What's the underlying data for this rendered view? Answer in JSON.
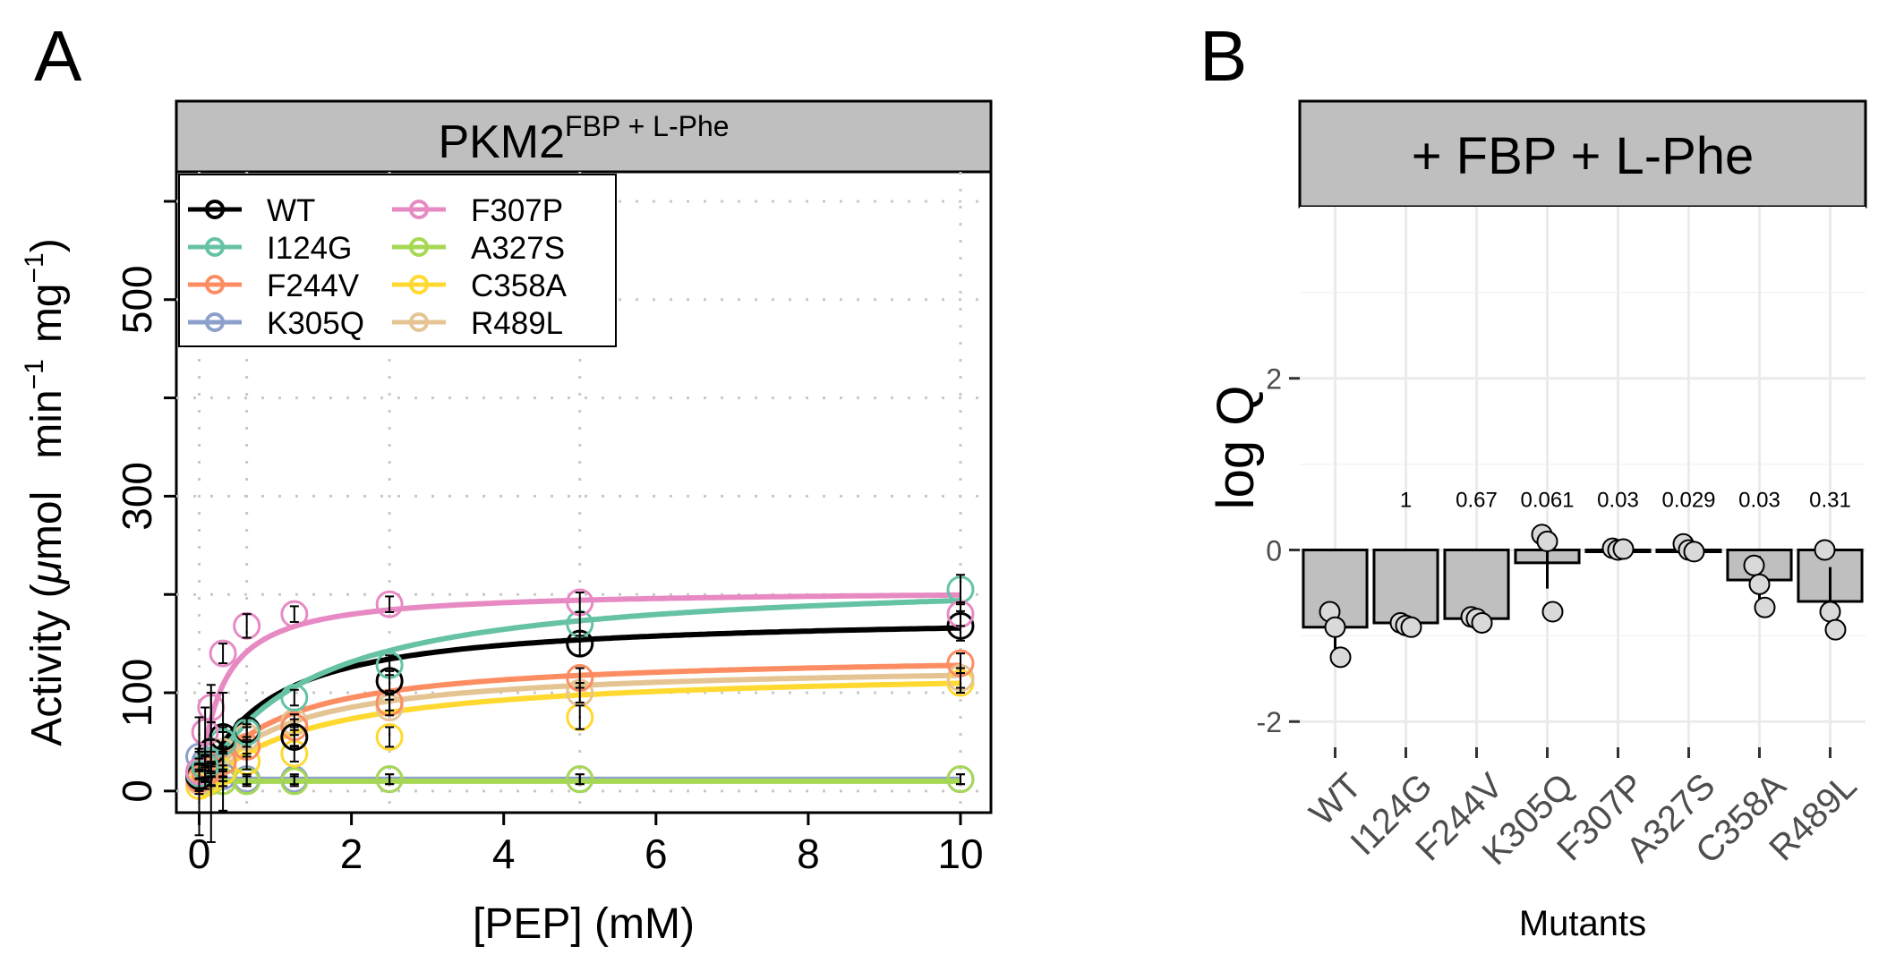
{
  "panel_a": {
    "letter": "A",
    "strip_main": "PKM2",
    "strip_sup": "FBP + L-Phe",
    "xlabel": "[PEP] (mM)",
    "ylabel_prefix": "Activity (",
    "ylabel_mu": "μ",
    "ylabel_mol": "mol",
    "ylabel_min": "min",
    "ylabel_mg": "mg",
    "ylabel_exp": "−1",
    "ylabel_close": ")"
  },
  "panel_b": {
    "letter": "B",
    "strip": "+ FBP + L-Phe",
    "xlabel": "Mutants",
    "ylabel": "log Q"
  },
  "colors": {
    "WT": "#000000",
    "I124G": "#66c2a5",
    "F244V": "#fc8d62",
    "K305Q": "#8da0cb",
    "F307P": "#e78ac3",
    "A327S": "#a6d854",
    "C358A": "#ffd92f",
    "R489L": "#e5c494",
    "strip_fill": "#bfbfbf",
    "bar_fill": "#bfbfbf",
    "grid_a": "#c8c8c8",
    "grid_b": "#ebebeb"
  },
  "chart_data": [
    {
      "type": "line",
      "title": "PKM2 FBP + L-Phe",
      "xlabel": "[PEP] (mM)",
      "ylabel": "Activity (μmol min−1 mg−1)",
      "xlim": [
        -0.3,
        10.4
      ],
      "ylim": [
        -22,
        630
      ],
      "xticks": [
        0,
        2,
        4,
        6,
        8,
        10
      ],
      "yticks": [
        0,
        100,
        300,
        500
      ],
      "grid": true,
      "legend_position": "top-left",
      "x": [
        0.0,
        0.078,
        0.156,
        0.3125,
        0.625,
        1.25,
        2.5,
        5.0,
        10.0
      ],
      "series": [
        {
          "name": "WT",
          "points": [
            15,
            25,
            40,
            55,
            62,
            55,
            112,
            150,
            168
          ],
          "err": [
            60,
            15,
            12,
            10,
            12,
            10,
            10,
            12,
            15
          ],
          "curve": {
            "vmax": 180,
            "km": 0.85,
            "base": 0
          }
        },
        {
          "name": "I124G",
          "points": [
            18,
            25,
            30,
            50,
            60,
            95,
            128,
            170,
            205
          ],
          "err": [
            15,
            12,
            10,
            10,
            8,
            8,
            10,
            12,
            15
          ],
          "curve": {
            "vmax": 220,
            "km": 1.35,
            "base": 0
          }
        },
        {
          "name": "F244V",
          "points": [
            12,
            18,
            22,
            30,
            45,
            65,
            90,
            115,
            130
          ],
          "err": [
            10,
            8,
            8,
            8,
            10,
            8,
            8,
            10,
            10
          ],
          "curve": {
            "vmax": 140,
            "km": 0.95,
            "base": 0
          }
        },
        {
          "name": "K305Q",
          "points": [
            35,
            30,
            20,
            15,
            12,
            12,
            12,
            12,
            12
          ],
          "err": [
            8,
            6,
            5,
            5,
            5,
            5,
            5,
            5,
            5
          ],
          "curve": {
            "vmax": 0,
            "km": 1,
            "base": 12
          }
        },
        {
          "name": "F307P",
          "points": [
            20,
            60,
            85,
            140,
            168,
            180,
            190,
            192,
            180
          ],
          "err": [
            20,
            25,
            15,
            10,
            12,
            8,
            8,
            10,
            12
          ],
          "curve": {
            "vmax": 205,
            "km": 0.28,
            "base": 0
          }
        },
        {
          "name": "A327S",
          "points": [
            20,
            15,
            10,
            10,
            10,
            10,
            12,
            12,
            12
          ],
          "err": [
            8,
            6,
            5,
            5,
            5,
            5,
            5,
            5,
            5
          ],
          "curve": {
            "vmax": 0,
            "km": 1,
            "base": 10
          }
        },
        {
          "name": "C358A",
          "points": [
            5,
            8,
            12,
            20,
            30,
            38,
            55,
            75,
            110
          ],
          "err": [
            8,
            6,
            6,
            6,
            8,
            8,
            10,
            12,
            10
          ],
          "curve": {
            "vmax": 125,
            "km": 1.4,
            "base": 0
          }
        },
        {
          "name": "R489L",
          "points": [
            10,
            20,
            28,
            40,
            55,
            70,
            85,
            100,
            115
          ],
          "err": [
            10,
            8,
            80,
            60,
            10,
            8,
            8,
            10,
            10
          ],
          "curve": {
            "vmax": 130,
            "km": 1.05,
            "base": 0
          }
        }
      ]
    },
    {
      "type": "bar",
      "title": "+ FBP + L-Phe",
      "xlabel": "Mutants",
      "ylabel": "log Q",
      "ylim": [
        -2.3,
        4.0
      ],
      "yticks": [
        -2,
        0,
        2
      ],
      "grid": true,
      "categories": [
        "WT",
        "I124G",
        "F244V",
        "K305Q",
        "F307P",
        "A327S",
        "C358A",
        "R489L"
      ],
      "values": [
        -0.9,
        -0.85,
        -0.8,
        -0.15,
        0.0,
        -0.02,
        -0.35,
        -0.6
      ],
      "errors": [
        0.25,
        0.05,
        0.05,
        0.3,
        0.02,
        0.05,
        0.28,
        0.4
      ],
      "labels": [
        "",
        "1",
        "0.67",
        "0.061",
        "0.03",
        "0.029",
        "0.03",
        "0.31"
      ],
      "points": [
        [
          -0.72,
          -0.9,
          -1.25
        ],
        [
          -0.85,
          -0.88,
          -0.9
        ],
        [
          -0.78,
          -0.8,
          -0.85
        ],
        [
          0.18,
          0.1,
          -0.72
        ],
        [
          0.02,
          0.0,
          0.01
        ],
        [
          0.07,
          0.0,
          -0.02
        ],
        [
          -0.18,
          -0.4,
          -0.67
        ],
        [
          0.0,
          -0.72,
          -0.93
        ]
      ]
    }
  ]
}
